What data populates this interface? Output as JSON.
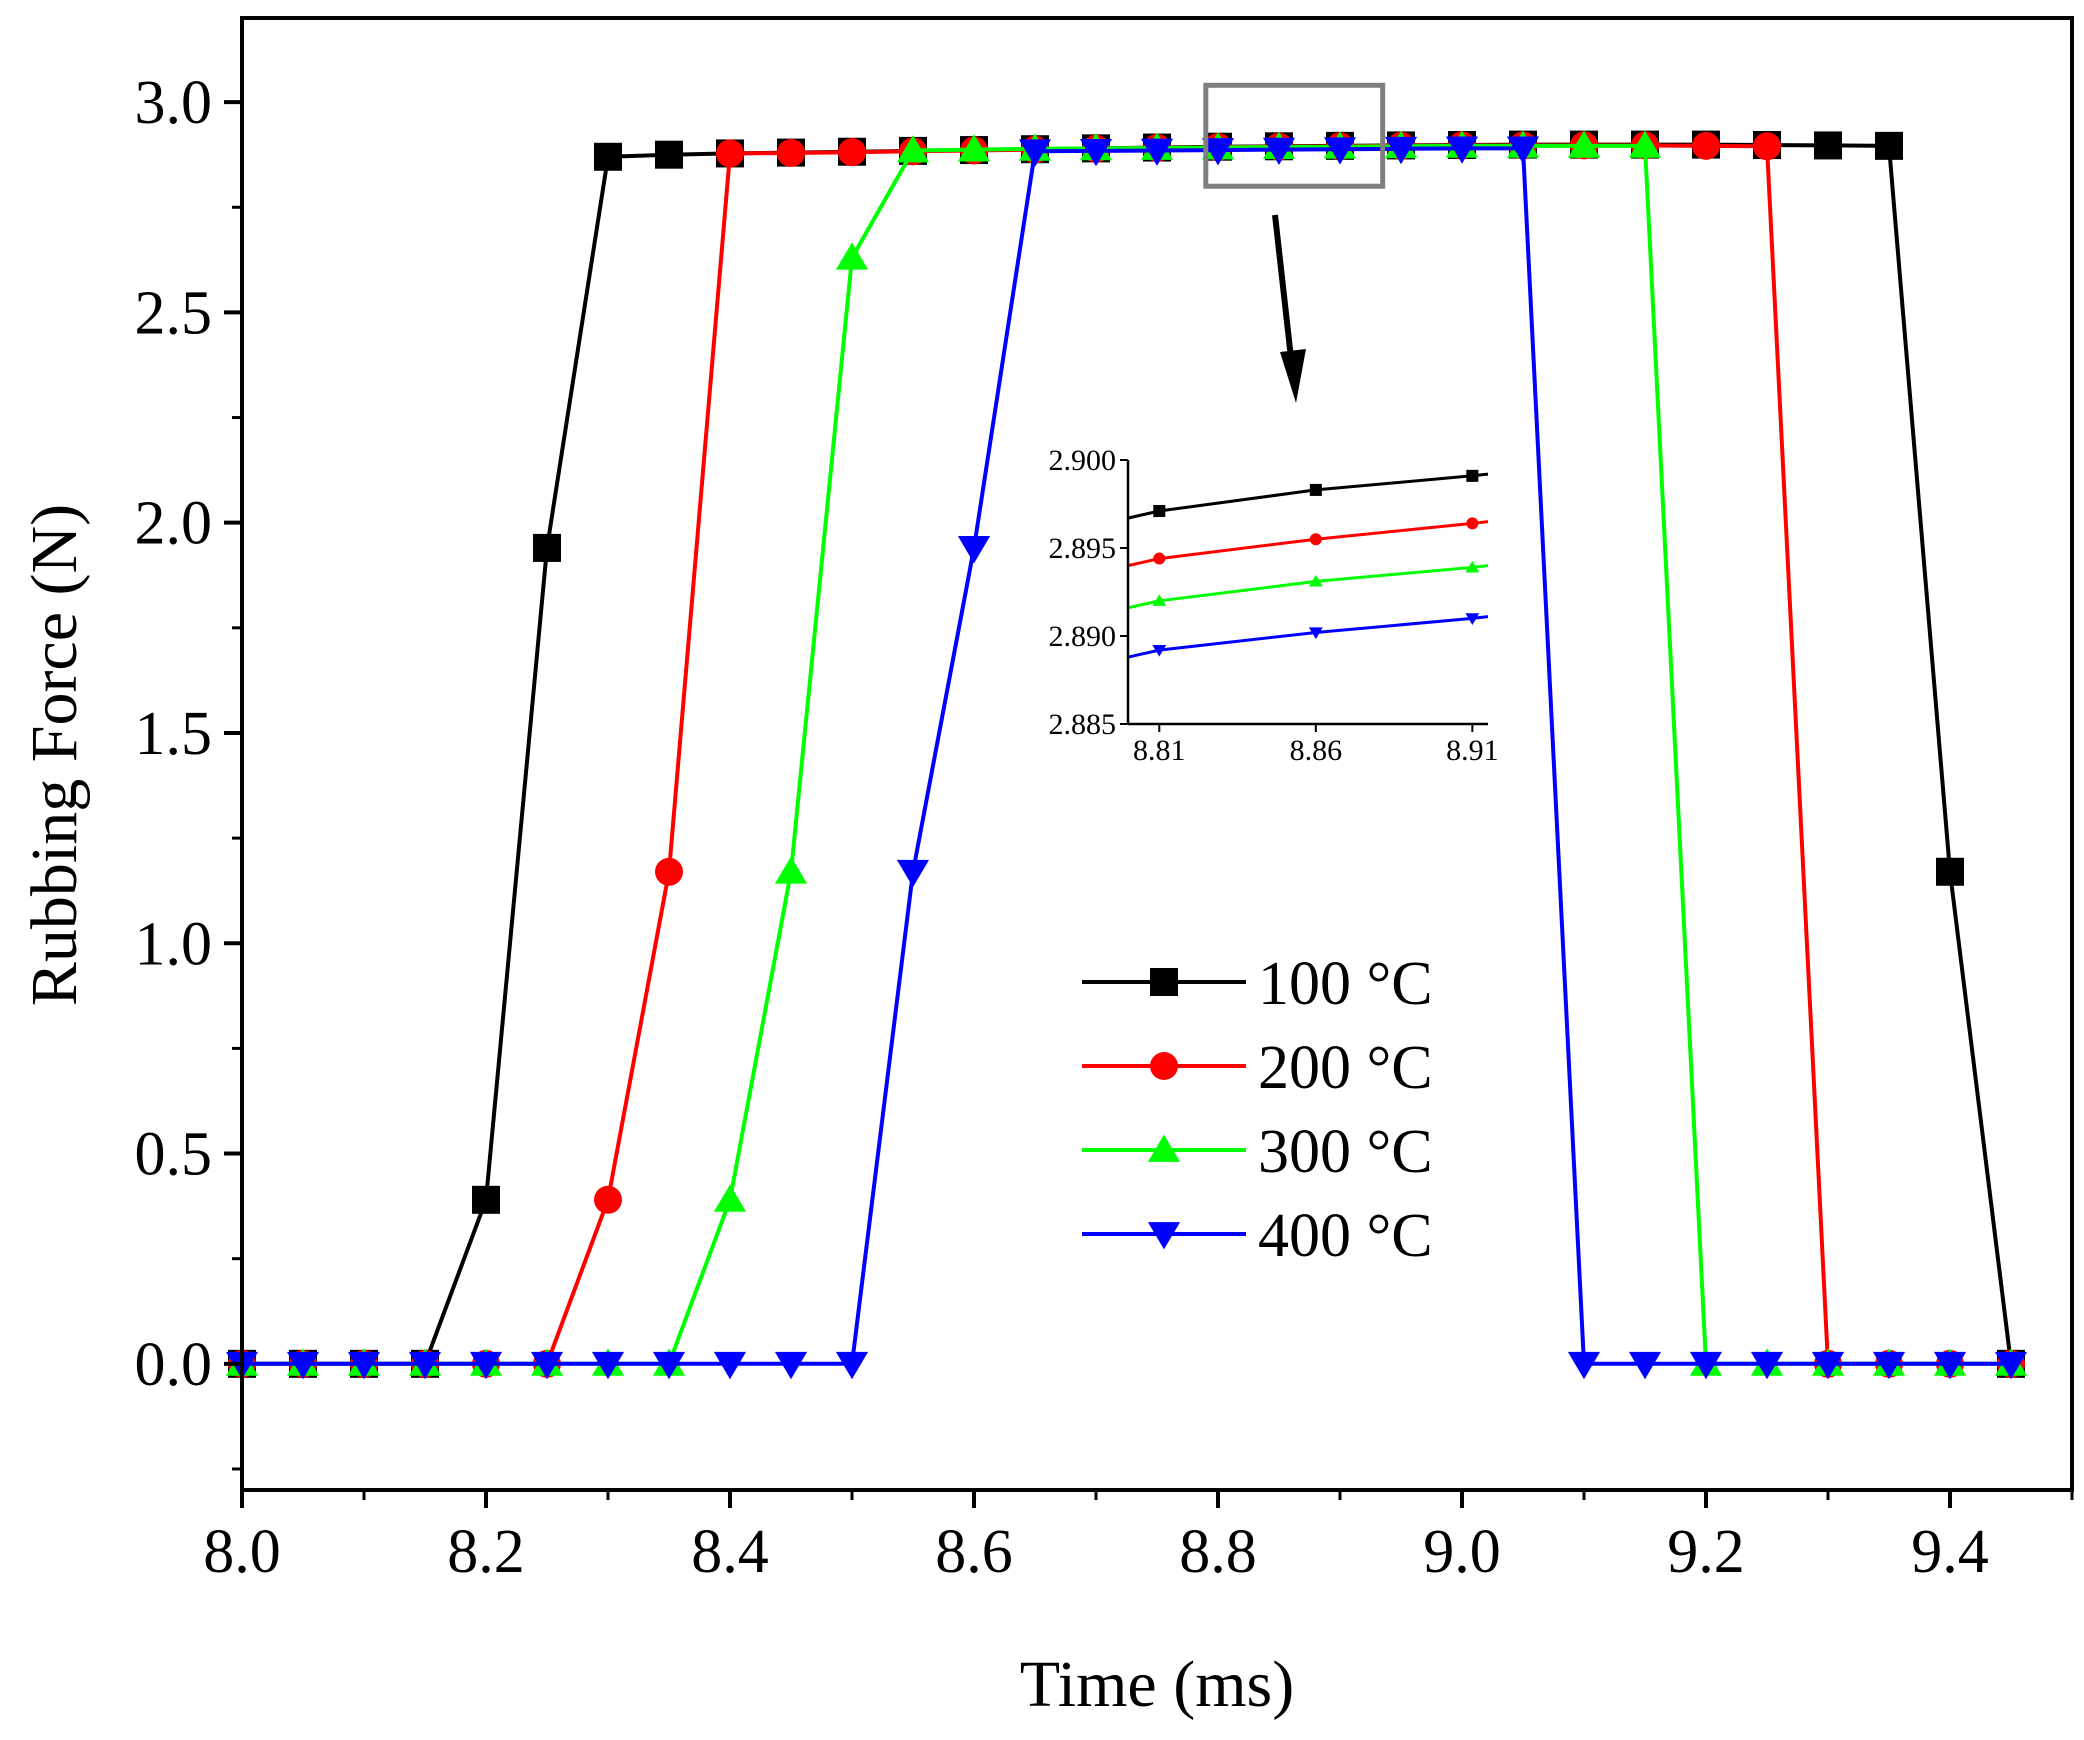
{
  "chart_data": {
    "type": "line",
    "title": "",
    "xlabel": "Time (ms)",
    "ylabel": "Rubbing Force (N)",
    "xlim": [
      8.0,
      9.5
    ],
    "ylim": [
      -0.3,
      3.2
    ],
    "xticks": [
      8.0,
      8.2,
      8.4,
      8.6,
      8.8,
      9.0,
      9.2,
      9.4
    ],
    "xtick_labels": [
      "8.0",
      "8.2",
      "8.4",
      "8.6",
      "8.8",
      "9.0",
      "9.2",
      "9.4"
    ],
    "yticks": [
      0.0,
      0.5,
      1.0,
      1.5,
      2.0,
      2.5,
      3.0
    ],
    "ytick_labels": [
      "0.0",
      "0.5",
      "1.0",
      "1.5",
      "2.0",
      "2.5",
      "3.0"
    ],
    "legend_position": "center-right",
    "series": [
      {
        "name": "100 °C",
        "color": "#000000",
        "marker": "square",
        "x": [
          8.0,
          8.05,
          8.1,
          8.15,
          8.2,
          8.25,
          8.3,
          8.35,
          8.4,
          8.45,
          8.5,
          8.55,
          8.6,
          8.65,
          8.7,
          8.75,
          8.8,
          8.85,
          8.9,
          8.95,
          9.0,
          9.05,
          9.1,
          9.15,
          9.2,
          9.25,
          9.3,
          9.35,
          9.4,
          9.45
        ],
        "y": [
          0,
          0,
          0,
          0,
          0.39,
          1.94,
          2.87,
          2.875,
          2.878,
          2.88,
          2.882,
          2.884,
          2.886,
          2.888,
          2.89,
          2.892,
          2.894,
          2.895,
          2.896,
          2.897,
          2.898,
          2.899,
          2.899,
          2.899,
          2.899,
          2.898,
          2.897,
          2.896,
          1.17,
          0
        ]
      },
      {
        "name": "200 °C",
        "color": "#ff0000",
        "marker": "circle",
        "x": [
          8.0,
          8.05,
          8.1,
          8.15,
          8.2,
          8.25,
          8.3,
          8.35,
          8.4,
          8.45,
          8.5,
          8.55,
          8.6,
          8.65,
          8.7,
          8.75,
          8.8,
          8.85,
          8.9,
          8.95,
          9.0,
          9.05,
          9.1,
          9.15,
          9.2,
          9.25,
          9.3,
          9.35,
          9.4,
          9.45
        ],
        "y": [
          0,
          0,
          0,
          0,
          0,
          0,
          0.39,
          1.17,
          2.878,
          2.879,
          2.881,
          2.883,
          2.885,
          2.887,
          2.889,
          2.891,
          2.893,
          2.894,
          2.895,
          2.896,
          2.897,
          2.897,
          2.897,
          2.897,
          2.896,
          2.895,
          0,
          0,
          0,
          0
        ]
      },
      {
        "name": "300 °C",
        "color": "#00ff00",
        "marker": "triangle-up",
        "x": [
          8.0,
          8.05,
          8.1,
          8.15,
          8.2,
          8.25,
          8.3,
          8.35,
          8.4,
          8.45,
          8.5,
          8.55,
          8.6,
          8.65,
          8.7,
          8.75,
          8.8,
          8.85,
          8.9,
          8.95,
          9.0,
          9.05,
          9.1,
          9.15,
          9.2,
          9.25,
          9.3,
          9.35,
          9.4,
          9.45
        ],
        "y": [
          0,
          0,
          0,
          0,
          0,
          0,
          0,
          0,
          0.39,
          1.17,
          2.63,
          2.885,
          2.887,
          2.889,
          2.89,
          2.891,
          2.892,
          2.893,
          2.894,
          2.895,
          2.896,
          2.896,
          2.896,
          2.896,
          0,
          0,
          0,
          0,
          0,
          0
        ]
      },
      {
        "name": "400 °C",
        "color": "#0000ff",
        "marker": "triangle-down",
        "x": [
          8.0,
          8.05,
          8.1,
          8.15,
          8.2,
          8.25,
          8.3,
          8.35,
          8.4,
          8.45,
          8.5,
          8.55,
          8.6,
          8.65,
          8.7,
          8.75,
          8.8,
          8.85,
          8.9,
          8.95,
          9.0,
          9.05,
          9.1,
          9.15,
          9.2,
          9.25,
          9.3,
          9.35,
          9.4,
          9.45
        ],
        "y": [
          0,
          0,
          0,
          0,
          0,
          0,
          0,
          0,
          0,
          0,
          0,
          1.17,
          1.94,
          2.883,
          2.884,
          2.885,
          2.886,
          2.887,
          2.888,
          2.889,
          2.89,
          2.89,
          0,
          0,
          0,
          0,
          0,
          0,
          0,
          0
        ]
      }
    ],
    "inset": {
      "xlim": [
        8.8,
        8.915
      ],
      "ylim": [
        2.885,
        2.9
      ],
      "xticks": [
        8.81,
        8.86,
        8.91
      ],
      "xtick_labels": [
        "8.81",
        "8.86",
        "8.91"
      ],
      "yticks": [
        2.885,
        2.89,
        2.895,
        2.9
      ],
      "ytick_labels": [
        "2.885",
        "2.890",
        "2.895",
        "2.900"
      ],
      "marker_x": [
        8.81,
        8.86,
        8.91
      ],
      "series": [
        {
          "name": "100 °C",
          "color": "#000000",
          "marker": "square",
          "x": [
            8.8,
            8.81,
            8.86,
            8.91,
            8.915
          ],
          "y": [
            2.8967,
            2.8971,
            2.8983,
            2.8991,
            2.8992
          ]
        },
        {
          "name": "200 °C",
          "color": "#ff0000",
          "marker": "circle",
          "x": [
            8.8,
            8.81,
            8.86,
            8.91,
            8.915
          ],
          "y": [
            2.894,
            2.8944,
            2.8955,
            2.8964,
            2.8965
          ]
        },
        {
          "name": "300 °C",
          "color": "#00ff00",
          "marker": "triangle-up",
          "x": [
            8.8,
            8.81,
            8.86,
            8.91,
            8.915
          ],
          "y": [
            2.8916,
            2.892,
            2.8931,
            2.8939,
            2.894
          ]
        },
        {
          "name": "400 °C",
          "color": "#0000ff",
          "marker": "triangle-down",
          "x": [
            8.8,
            8.81,
            8.86,
            8.91,
            8.915
          ],
          "y": [
            2.8888,
            2.8892,
            2.8902,
            2.891,
            2.8911
          ]
        }
      ]
    },
    "zoom_box": {
      "xlim": [
        8.79,
        8.935
      ],
      "ylim": [
        2.8,
        3.04
      ]
    }
  }
}
